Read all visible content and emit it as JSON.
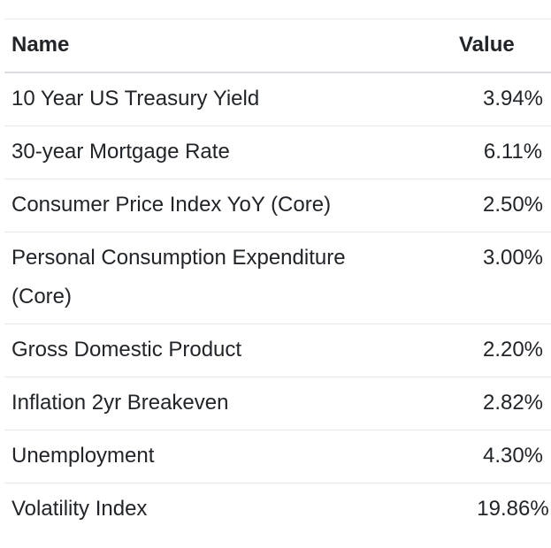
{
  "table": {
    "columns": [
      {
        "label": "Name"
      },
      {
        "label": "Value"
      }
    ],
    "rows": [
      {
        "name": "10 Year US Treasury Yield",
        "value": "3.94%"
      },
      {
        "name": "30-year Mortgage Rate",
        "value": "6.11%"
      },
      {
        "name": "Consumer Price Index YoY (Core)",
        "value": "2.50%"
      },
      {
        "name": "Personal Consumption Expenditure (Core)",
        "value": "3.00%"
      },
      {
        "name": "Gross Domestic Product",
        "value": "2.20%"
      },
      {
        "name": "Inflation 2yr Breakeven",
        "value": "2.82%"
      },
      {
        "name": "Unemployment",
        "value": "4.30%"
      },
      {
        "name": "Volatility Index",
        "value": "19.86%"
      }
    ]
  },
  "colors": {
    "text": "#212529",
    "background": "#ffffff",
    "top_border": "#e9ecef",
    "header_border": "#d9dde2",
    "row_border": "#e4e7eb"
  },
  "chart_data": {
    "type": "table",
    "columns": [
      "Name",
      "Value"
    ],
    "rows": [
      [
        "10 Year US Treasury Yield",
        "3.94%"
      ],
      [
        "30-year Mortgage Rate",
        "6.11%"
      ],
      [
        "Consumer Price Index YoY (Core)",
        "2.50%"
      ],
      [
        "Personal Consumption Expenditure (Core)",
        "3.00%"
      ],
      [
        "Gross Domestic Product",
        "2.20%"
      ],
      [
        "Inflation 2yr Breakeven",
        "2.82%"
      ],
      [
        "Unemployment",
        "4.30%"
      ],
      [
        "Volatility Index",
        "19.86%"
      ]
    ]
  }
}
